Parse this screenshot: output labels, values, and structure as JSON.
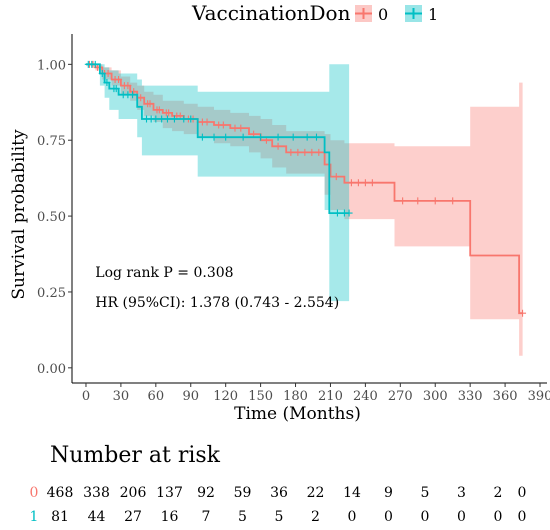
{
  "chart_data": {
    "type": "line",
    "subtype": "kaplan-meier",
    "legend": {
      "title": "VaccinationDon",
      "placement": "top",
      "entries": [
        {
          "label": "0",
          "color": "#F8766D"
        },
        {
          "label": "1",
          "color": "#00BFC4"
        }
      ]
    },
    "xlabel": "Time (Months)",
    "ylabel": "Survival probability",
    "xlim": [
      -12,
      396
    ],
    "ylim": [
      -0.05,
      1.1
    ],
    "xticks": [
      0,
      30,
      60,
      90,
      120,
      150,
      180,
      210,
      240,
      270,
      300,
      330,
      360,
      390
    ],
    "yticks": [
      0.0,
      0.25,
      0.5,
      0.75,
      1.0
    ],
    "ytick_labels": [
      "0.00",
      "0.25",
      "0.50",
      "0.75",
      "1.00"
    ],
    "annotations": [
      {
        "text": "Log rank P = 0.308",
        "x": 8,
        "y": 0.3
      },
      {
        "text": "HR (95%CI): 1.378 (0.743 - 2.554)",
        "x": 8,
        "y": 0.2
      }
    ],
    "series": [
      {
        "name": "0",
        "color": "#F8766D",
        "band_color": "#F8766D",
        "steps": [
          [
            0,
            1.0
          ],
          [
            8,
            0.99
          ],
          [
            14,
            0.97
          ],
          [
            22,
            0.95
          ],
          [
            30,
            0.93
          ],
          [
            38,
            0.91
          ],
          [
            44,
            0.89
          ],
          [
            50,
            0.87
          ],
          [
            58,
            0.85
          ],
          [
            66,
            0.84
          ],
          [
            74,
            0.83
          ],
          [
            84,
            0.82
          ],
          [
            96,
            0.81
          ],
          [
            110,
            0.8
          ],
          [
            124,
            0.79
          ],
          [
            140,
            0.77
          ],
          [
            150,
            0.75
          ],
          [
            160,
            0.73
          ],
          [
            172,
            0.71
          ],
          [
            205,
            0.67
          ],
          [
            210,
            0.63
          ],
          [
            222,
            0.61
          ],
          [
            265,
            0.55
          ],
          [
            330,
            0.37
          ],
          [
            372,
            0.18
          ],
          [
            375,
            0.18
          ]
        ],
        "lower": [
          [
            0,
            1.0
          ],
          [
            8,
            0.98
          ],
          [
            14,
            0.95
          ],
          [
            22,
            0.93
          ],
          [
            30,
            0.9
          ],
          [
            38,
            0.88
          ],
          [
            44,
            0.85
          ],
          [
            50,
            0.83
          ],
          [
            58,
            0.81
          ],
          [
            66,
            0.79
          ],
          [
            74,
            0.78
          ],
          [
            84,
            0.77
          ],
          [
            96,
            0.76
          ],
          [
            110,
            0.74
          ],
          [
            124,
            0.73
          ],
          [
            140,
            0.71
          ],
          [
            150,
            0.69
          ],
          [
            160,
            0.66
          ],
          [
            172,
            0.64
          ],
          [
            205,
            0.57
          ],
          [
            210,
            0.52
          ],
          [
            222,
            0.49
          ],
          [
            265,
            0.4
          ],
          [
            330,
            0.16
          ],
          [
            372,
            0.04
          ],
          [
            375,
            0.04
          ]
        ],
        "upper": [
          [
            0,
            1.0
          ],
          [
            8,
            1.0
          ],
          [
            14,
            0.99
          ],
          [
            22,
            0.98
          ],
          [
            30,
            0.96
          ],
          [
            38,
            0.94
          ],
          [
            44,
            0.93
          ],
          [
            50,
            0.91
          ],
          [
            58,
            0.9
          ],
          [
            66,
            0.88
          ],
          [
            74,
            0.88
          ],
          [
            84,
            0.87
          ],
          [
            96,
            0.86
          ],
          [
            110,
            0.85
          ],
          [
            124,
            0.84
          ],
          [
            140,
            0.83
          ],
          [
            150,
            0.82
          ],
          [
            160,
            0.8
          ],
          [
            172,
            0.78
          ],
          [
            205,
            0.77
          ],
          [
            210,
            0.75
          ],
          [
            222,
            0.74
          ],
          [
            265,
            0.73
          ],
          [
            330,
            0.86
          ],
          [
            372,
            0.94
          ],
          [
            375,
            0.94
          ]
        ],
        "censors": [
          [
            3,
            1.0
          ],
          [
            6,
            1.0
          ],
          [
            10,
            0.99
          ],
          [
            16,
            0.97
          ],
          [
            19,
            0.97
          ],
          [
            25,
            0.95
          ],
          [
            28,
            0.95
          ],
          [
            33,
            0.93
          ],
          [
            36,
            0.93
          ],
          [
            41,
            0.91
          ],
          [
            47,
            0.89
          ],
          [
            53,
            0.87
          ],
          [
            55,
            0.87
          ],
          [
            61,
            0.85
          ],
          [
            63,
            0.85
          ],
          [
            69,
            0.84
          ],
          [
            71,
            0.84
          ],
          [
            78,
            0.83
          ],
          [
            81,
            0.83
          ],
          [
            88,
            0.82
          ],
          [
            92,
            0.82
          ],
          [
            100,
            0.81
          ],
          [
            104,
            0.81
          ],
          [
            114,
            0.8
          ],
          [
            118,
            0.8
          ],
          [
            128,
            0.79
          ],
          [
            133,
            0.79
          ],
          [
            144,
            0.77
          ],
          [
            155,
            0.75
          ],
          [
            165,
            0.73
          ],
          [
            176,
            0.71
          ],
          [
            182,
            0.71
          ],
          [
            188,
            0.71
          ],
          [
            194,
            0.71
          ],
          [
            200,
            0.71
          ],
          [
            215,
            0.63
          ],
          [
            228,
            0.61
          ],
          [
            234,
            0.61
          ],
          [
            240,
            0.61
          ],
          [
            246,
            0.61
          ],
          [
            272,
            0.55
          ],
          [
            285,
            0.55
          ],
          [
            300,
            0.55
          ],
          [
            315,
            0.55
          ],
          [
            375,
            0.18
          ]
        ]
      },
      {
        "name": "1",
        "color": "#00BFC4",
        "band_color": "#00BFC4",
        "steps": [
          [
            0,
            1.0
          ],
          [
            12,
            0.97
          ],
          [
            16,
            0.94
          ],
          [
            20,
            0.92
          ],
          [
            28,
            0.9
          ],
          [
            44,
            0.86
          ],
          [
            48,
            0.82
          ],
          [
            96,
            0.76
          ],
          [
            205,
            0.71
          ],
          [
            209,
            0.51
          ],
          [
            226,
            0.51
          ]
        ],
        "lower": [
          [
            0,
            1.0
          ],
          [
            12,
            0.93
          ],
          [
            16,
            0.89
          ],
          [
            20,
            0.85
          ],
          [
            28,
            0.82
          ],
          [
            44,
            0.76
          ],
          [
            48,
            0.7
          ],
          [
            96,
            0.63
          ],
          [
            205,
            0.52
          ],
          [
            209,
            0.22
          ],
          [
            226,
            0.22
          ]
        ],
        "upper": [
          [
            0,
            1.0
          ],
          [
            12,
            1.0
          ],
          [
            16,
            0.99
          ],
          [
            20,
            0.98
          ],
          [
            28,
            0.97
          ],
          [
            44,
            0.95
          ],
          [
            48,
            0.93
          ],
          [
            96,
            0.91
          ],
          [
            205,
            0.91
          ],
          [
            209,
            1.0
          ],
          [
            226,
            1.0
          ]
        ],
        "censors": [
          [
            2,
            1.0
          ],
          [
            5,
            1.0
          ],
          [
            8,
            1.0
          ],
          [
            14,
            0.97
          ],
          [
            18,
            0.94
          ],
          [
            24,
            0.92
          ],
          [
            26,
            0.92
          ],
          [
            32,
            0.9
          ],
          [
            36,
            0.9
          ],
          [
            40,
            0.9
          ],
          [
            52,
            0.82
          ],
          [
            56,
            0.82
          ],
          [
            60,
            0.82
          ],
          [
            65,
            0.82
          ],
          [
            70,
            0.82
          ],
          [
            76,
            0.82
          ],
          [
            84,
            0.82
          ],
          [
            90,
            0.82
          ],
          [
            100,
            0.76
          ],
          [
            110,
            0.76
          ],
          [
            120,
            0.76
          ],
          [
            135,
            0.76
          ],
          [
            150,
            0.76
          ],
          [
            165,
            0.76
          ],
          [
            178,
            0.76
          ],
          [
            190,
            0.76
          ],
          [
            198,
            0.76
          ],
          [
            216,
            0.51
          ],
          [
            222,
            0.51
          ],
          [
            226,
            0.51
          ]
        ]
      }
    ]
  },
  "risk_table": {
    "title": "Number at risk",
    "rows": [
      {
        "label": "0",
        "color": "#F8766D",
        "values": [
          "468",
          "338",
          "206",
          "137",
          "92",
          "59",
          "36",
          "22",
          "14",
          "9",
          "5",
          "3",
          "2",
          "0"
        ]
      },
      {
        "label": "1",
        "color": "#00BFC4",
        "values": [
          "81",
          "44",
          "27",
          "16",
          "7",
          "5",
          "5",
          "2",
          "0",
          "0",
          "0",
          "0",
          "0",
          "0"
        ]
      }
    ]
  }
}
